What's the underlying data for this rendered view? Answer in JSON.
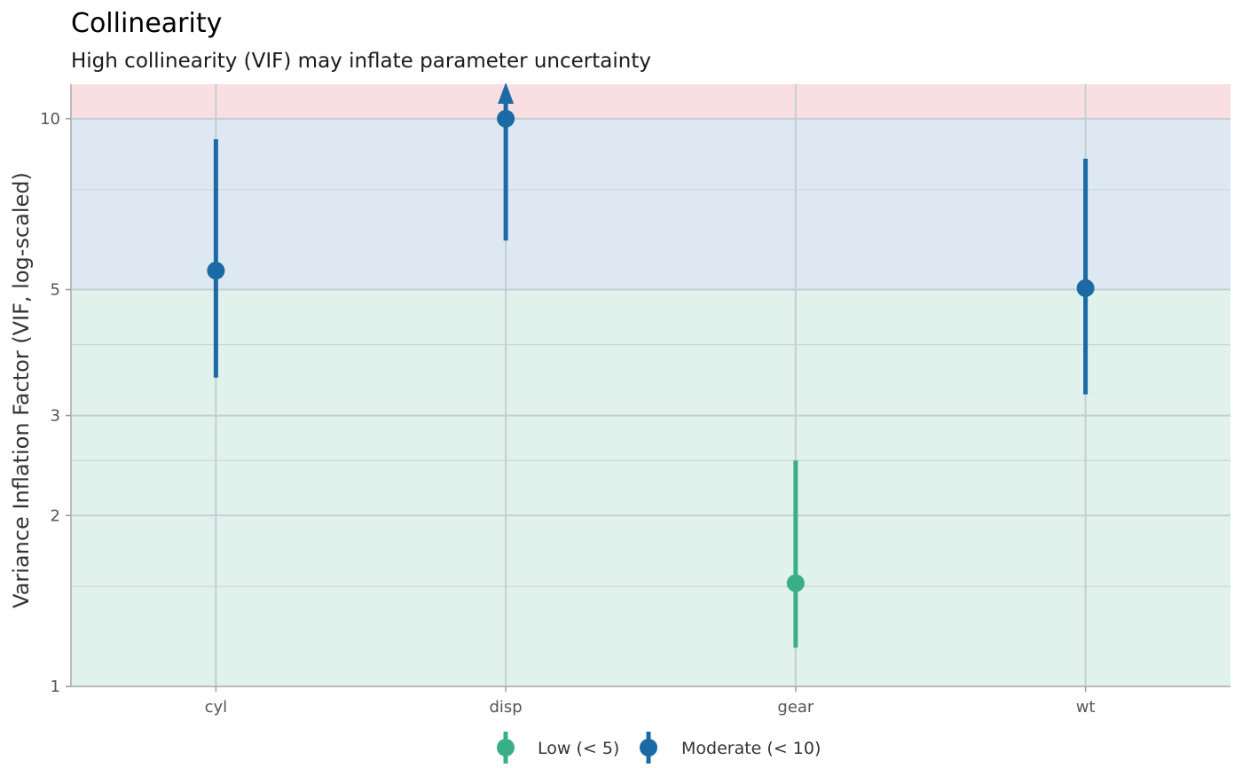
{
  "chart_data": {
    "type": "scatter",
    "title": "Collinearity",
    "subtitle": "High collinearity (VIF) may inflate parameter uncertainty",
    "xlabel": "",
    "ylabel": "Variance Inflation Factor (VIF, log-scaled)",
    "y_scale": "log",
    "ylim": [
      1,
      11.5
    ],
    "y_ticks": [
      1,
      2,
      3,
      5,
      10
    ],
    "y_minor_ticks": [
      1.5,
      2.5,
      4,
      7.5
    ],
    "categories": [
      "cyl",
      "disp",
      "gear",
      "wt"
    ],
    "points": [
      {
        "term": "cyl",
        "vif": 5.4,
        "ci_low": 3.5,
        "ci_high": 9.2,
        "group": "Moderate (< 10)",
        "ci_exceeds_top": false
      },
      {
        "term": "disp",
        "vif": 10.0,
        "ci_low": 6.1,
        "ci_high": 11.5,
        "group": "Moderate (< 10)",
        "ci_exceeds_top": true
      },
      {
        "term": "gear",
        "vif": 1.52,
        "ci_low": 1.17,
        "ci_high": 2.5,
        "group": "Low (< 5)",
        "ci_exceeds_top": false
      },
      {
        "term": "wt",
        "vif": 5.03,
        "ci_low": 3.27,
        "ci_high": 8.5,
        "group": "Moderate (< 10)",
        "ci_exceeds_top": false
      }
    ],
    "bands": [
      {
        "from": 1,
        "to": 5,
        "color": "#e1f2ec"
      },
      {
        "from": 5,
        "to": 10,
        "color": "#dde8f2"
      },
      {
        "from": 10,
        "to": 11.5,
        "color": "#f9dfe1"
      }
    ],
    "legend": {
      "position": "bottom",
      "entries": [
        {
          "label": "Low (< 5)",
          "color": "#3aaf85"
        },
        {
          "label": "Moderate (< 10)",
          "color": "#1b6aa5"
        }
      ]
    },
    "grid": true
  }
}
